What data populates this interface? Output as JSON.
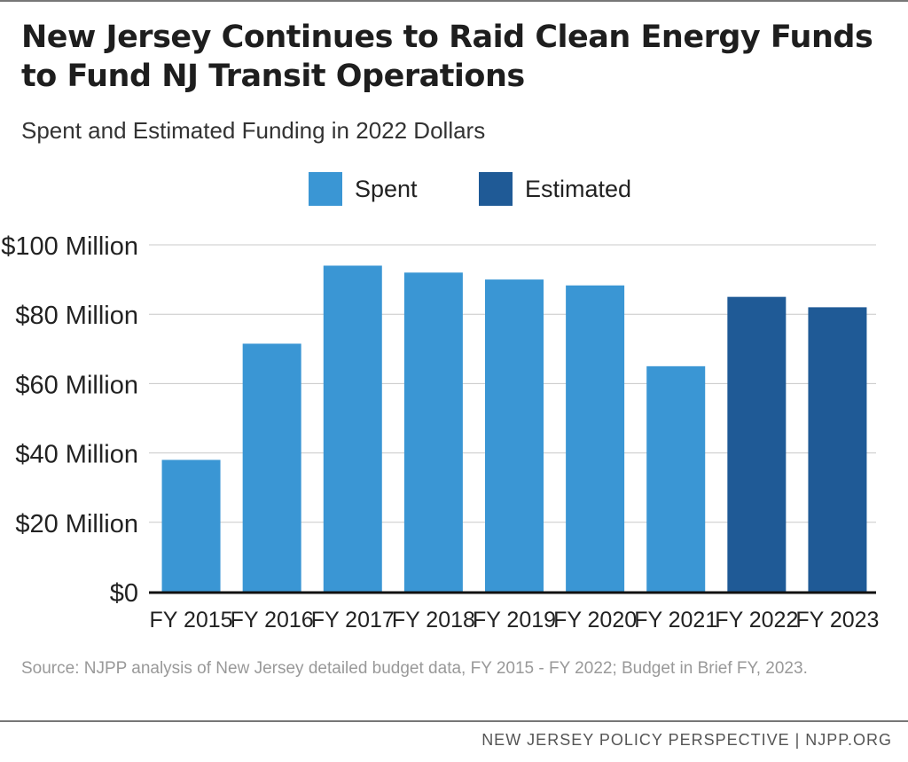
{
  "header": {
    "title": "New Jersey Continues to Raid Clean Energy Funds to Fund NJ Transit Operations",
    "subtitle": "Spent and Estimated Funding in 2022 Dollars"
  },
  "legend": {
    "spent_label": "Spent",
    "estimated_label": "Estimated"
  },
  "colors": {
    "spent": "#3a96d4",
    "estimated": "#1f5a96",
    "grid": "#c8c8c8",
    "axis": "#111111"
  },
  "chart_data": {
    "type": "bar",
    "title": "New Jersey Continues to Raid Clean Energy Funds to Fund NJ Transit Operations",
    "subtitle": "Spent and Estimated Funding in 2022 Dollars",
    "xlabel": "",
    "ylabel": "",
    "ylim": [
      0,
      100
    ],
    "grid": true,
    "legend_position": "top-center",
    "y_ticks": [
      0,
      20,
      40,
      60,
      80,
      100
    ],
    "y_tick_labels": [
      "$0",
      "$20 Million",
      "$40 Million",
      "$60 Million",
      "$80 Million",
      "$100 Million"
    ],
    "categories": [
      "FY 2015",
      "FY 2016",
      "FY 2017",
      "FY 2018",
      "FY 2019",
      "FY 2020",
      "FY 2021",
      "FY 2022",
      "FY 2023"
    ],
    "values": [
      38,
      71.5,
      94,
      92,
      90,
      88.3,
      65,
      85,
      82
    ],
    "status": [
      "Spent",
      "Spent",
      "Spent",
      "Spent",
      "Spent",
      "Spent",
      "Spent",
      "Estimated",
      "Estimated"
    ]
  },
  "source": "Source: NJPP analysis of New Jersey detailed budget data, FY 2015 - FY 2022; Budget in Brief FY, 2023.",
  "footer": "NEW JERSEY POLICY PERSPECTIVE | NJPP.ORG"
}
